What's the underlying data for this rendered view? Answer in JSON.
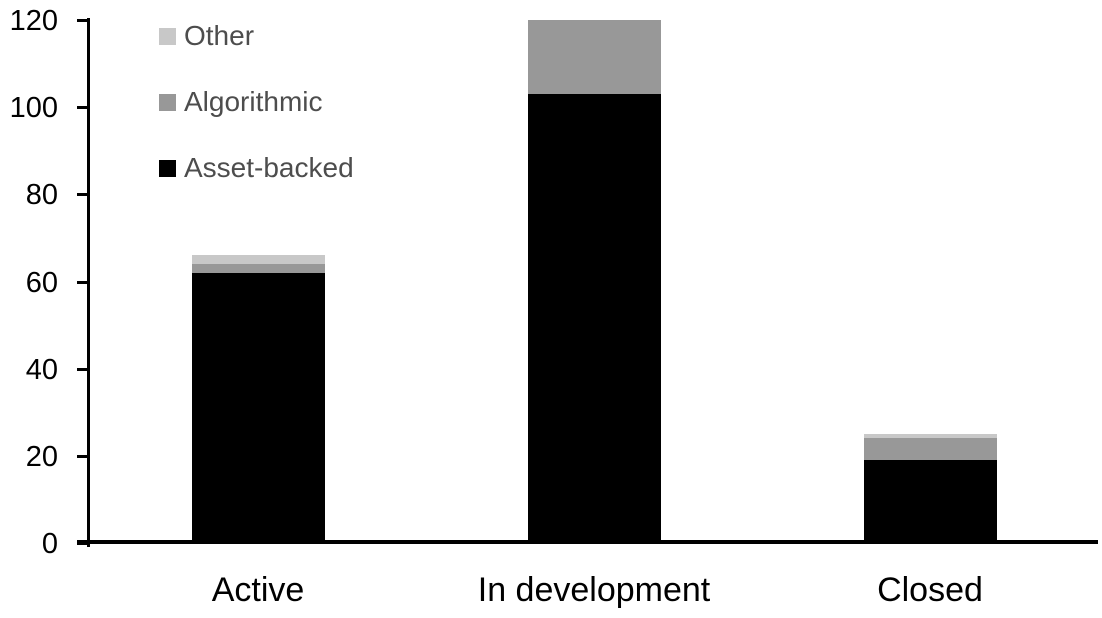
{
  "chart_data": {
    "type": "bar",
    "stacked": true,
    "title": "",
    "xlabel": "",
    "ylabel": "",
    "categories": [
      "Active",
      "In development",
      "Closed"
    ],
    "series": [
      {
        "name": "Asset-backed",
        "color": "#000000",
        "values": [
          62,
          103,
          19
        ]
      },
      {
        "name": "Algorithmic",
        "color": "#989898",
        "values": [
          2,
          17,
          5
        ]
      },
      {
        "name": "Other",
        "color": "#c8c8c8",
        "values": [
          2,
          0,
          1
        ]
      }
    ],
    "y_ticks": [
      0,
      20,
      40,
      60,
      80,
      100,
      120
    ],
    "ylim": [
      0,
      120
    ],
    "grid": false,
    "legend": {
      "position": "top-left-inside",
      "items": [
        {
          "label": "Other",
          "color": "#c8c8c8"
        },
        {
          "label": "Algorithmic",
          "color": "#989898"
        },
        {
          "label": "Asset-backed",
          "color": "#000000"
        }
      ],
      "text_color": "#4d4d4d"
    },
    "axis_color": "#000000",
    "tick_label_color": "#000000",
    "category_label_color": "#000000",
    "background": "#ffffff"
  }
}
